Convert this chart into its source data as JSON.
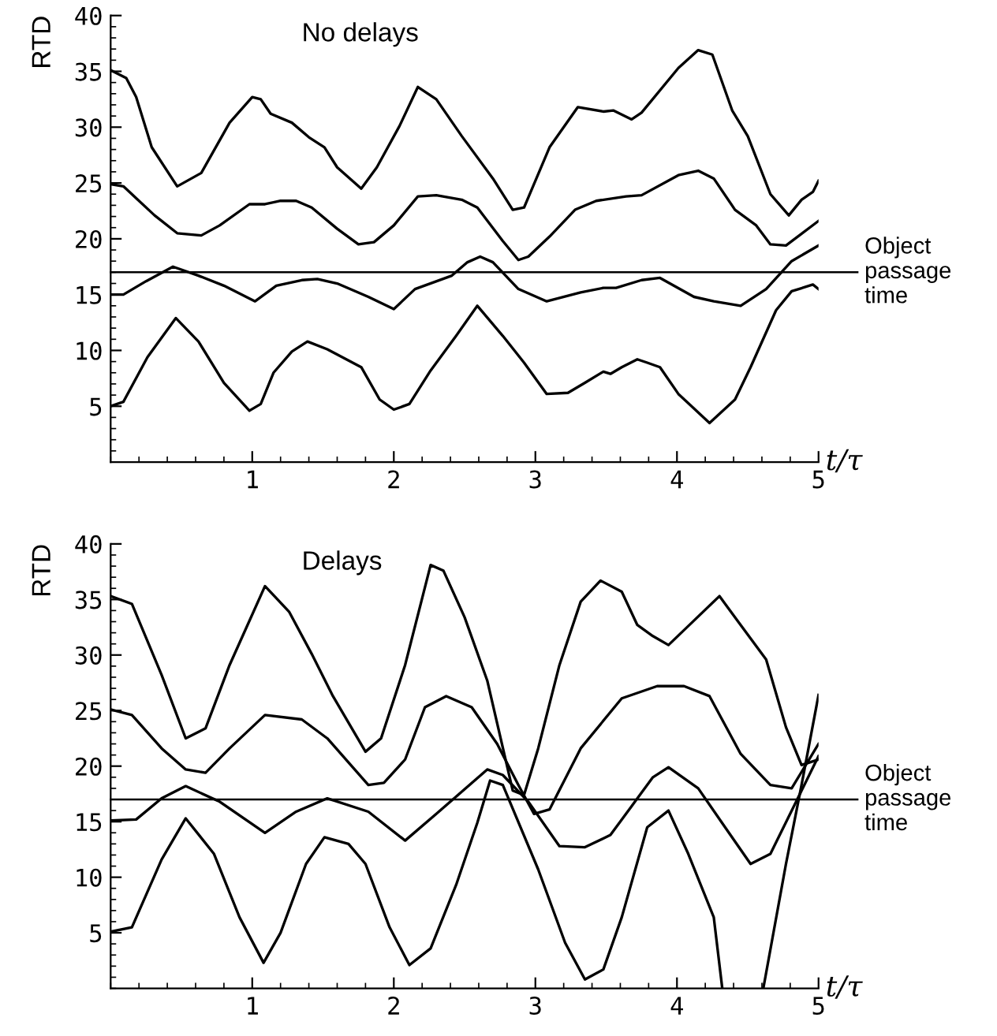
{
  "chart_data": [
    {
      "type": "line",
      "title": "No delays",
      "xlabel": "t/τ",
      "ylabel": "RTD",
      "xlim": [
        0,
        5
      ],
      "ylim": [
        0,
        40
      ],
      "xticks": [
        1,
        2,
        3,
        4,
        5
      ],
      "yticks": [
        5,
        10,
        15,
        20,
        25,
        30,
        35,
        40
      ],
      "grid": false,
      "legend": false,
      "marker": "none",
      "line_style": "solid",
      "ref_lines": [
        {
          "axis": "y",
          "value": 17,
          "label": "Object\npassage\ntime",
          "color": "#000000"
        }
      ],
      "series": [
        {
          "color": "#000000",
          "x": [
            0,
            0.11,
            0.18,
            0.29,
            0.47,
            0.64,
            0.84,
            1.0,
            1.06,
            1.13,
            1.28,
            1.4,
            1.51,
            1.6,
            1.77,
            1.88,
            2.04,
            2.17,
            2.3,
            2.48,
            2.7,
            2.84,
            2.92,
            3.1,
            3.3,
            3.48,
            3.55,
            3.68,
            3.75,
            4.01,
            4.15,
            4.25,
            4.39,
            4.5,
            4.66,
            4.79,
            4.88,
            4.96,
            5.0
          ],
          "values": [
            35.1,
            34.4,
            32.7,
            28.2,
            24.7,
            25.9,
            30.4,
            32.7,
            32.5,
            31.2,
            30.4,
            29.1,
            28.2,
            26.4,
            24.5,
            26.4,
            30.1,
            33.6,
            32.5,
            29.2,
            25.4,
            22.6,
            22.8,
            28.2,
            31.8,
            31.4,
            31.5,
            30.7,
            31.3,
            35.3,
            36.9,
            36.5,
            31.5,
            29.2,
            24.0,
            22.1,
            23.5,
            24.2,
            25.2
          ]
        },
        {
          "color": "#000000",
          "x": [
            0,
            0.09,
            0.31,
            0.47,
            0.64,
            0.77,
            0.98,
            1.09,
            1.2,
            1.31,
            1.42,
            1.6,
            1.75,
            1.86,
            2.0,
            2.17,
            2.3,
            2.48,
            2.59,
            2.77,
            2.88,
            2.95,
            3.1,
            3.28,
            3.43,
            3.64,
            3.75,
            4.01,
            4.15,
            4.26,
            4.41,
            4.56,
            4.66,
            4.77,
            5.0
          ],
          "values": [
            24.9,
            24.7,
            22.1,
            20.5,
            20.3,
            21.2,
            23.1,
            23.1,
            23.4,
            23.4,
            22.8,
            20.9,
            19.5,
            19.7,
            21.2,
            23.8,
            23.9,
            23.5,
            22.8,
            19.8,
            18.1,
            18.4,
            20.2,
            22.6,
            23.4,
            23.8,
            23.9,
            25.7,
            26.1,
            25.4,
            22.6,
            21.2,
            19.5,
            19.4,
            21.6
          ]
        },
        {
          "color": "#000000",
          "x": [
            0,
            0.09,
            0.25,
            0.44,
            0.62,
            0.8,
            1.02,
            1.17,
            1.35,
            1.46,
            1.6,
            1.82,
            2.0,
            2.15,
            2.41,
            2.52,
            2.61,
            2.7,
            2.88,
            3.08,
            3.32,
            3.48,
            3.57,
            3.75,
            3.88,
            4.12,
            4.26,
            4.45,
            4.63,
            4.81,
            5.0
          ],
          "values": [
            15.0,
            15.0,
            16.2,
            17.5,
            16.7,
            15.8,
            14.4,
            15.8,
            16.3,
            16.4,
            16.0,
            14.8,
            13.7,
            15.5,
            16.7,
            17.9,
            18.4,
            17.9,
            15.5,
            14.4,
            15.2,
            15.6,
            15.6,
            16.3,
            16.5,
            14.8,
            14.4,
            14.0,
            15.5,
            18.0,
            19.4
          ]
        },
        {
          "color": "#000000",
          "x": [
            0,
            0.09,
            0.26,
            0.46,
            0.62,
            0.8,
            0.98,
            1.06,
            1.15,
            1.28,
            1.39,
            1.53,
            1.77,
            1.9,
            2.0,
            2.11,
            2.26,
            2.44,
            2.59,
            2.77,
            2.92,
            3.08,
            3.23,
            3.35,
            3.48,
            3.53,
            3.61,
            3.72,
            3.79,
            3.88,
            4.01,
            4.23,
            4.41,
            4.52,
            4.7,
            4.81,
            4.96,
            5.0
          ],
          "values": [
            5.0,
            5.4,
            9.4,
            12.9,
            10.8,
            7.1,
            4.6,
            5.2,
            8.0,
            9.9,
            10.8,
            10.1,
            8.5,
            5.6,
            4.7,
            5.2,
            8.2,
            11.3,
            14.0,
            11.3,
            8.9,
            6.1,
            6.2,
            7.1,
            8.1,
            7.9,
            8.5,
            9.2,
            8.9,
            8.5,
            6.1,
            3.5,
            5.6,
            8.5,
            13.6,
            15.3,
            15.9,
            15.5
          ]
        }
      ]
    },
    {
      "type": "line",
      "title": "Delays",
      "xlabel": "t/τ",
      "ylabel": "RTD",
      "xlim": [
        0,
        5
      ],
      "ylim": [
        0,
        40
      ],
      "xticks": [
        1,
        2,
        3,
        4,
        5
      ],
      "yticks": [
        5,
        10,
        15,
        20,
        25,
        30,
        35,
        40
      ],
      "grid": false,
      "legend": false,
      "marker": "none",
      "line_style": "solid",
      "ref_lines": [
        {
          "axis": "y",
          "value": 17,
          "label": "Object\npassage\ntime",
          "color": "#000000"
        }
      ],
      "series": [
        {
          "color": "#000000",
          "x": [
            0,
            0.15,
            0.36,
            0.53,
            0.67,
            0.84,
            1.09,
            1.26,
            1.42,
            1.57,
            1.8,
            1.91,
            2.08,
            2.26,
            2.35,
            2.5,
            2.66,
            2.84,
            2.92,
            3.02,
            3.17,
            3.32,
            3.46,
            3.61,
            3.72,
            3.83,
            3.94,
            4.12,
            4.3,
            4.45,
            4.63,
            4.77,
            4.88,
            5.0
          ],
          "values": [
            35.3,
            34.6,
            28.2,
            22.5,
            23.4,
            29.1,
            36.2,
            33.9,
            30.1,
            26.3,
            21.3,
            22.5,
            29.1,
            38.1,
            37.6,
            33.4,
            27.7,
            17.8,
            17.4,
            21.6,
            29.1,
            34.8,
            36.7,
            35.7,
            32.7,
            31.7,
            30.9,
            33.1,
            35.3,
            32.7,
            29.6,
            23.5,
            20.1,
            20.6
          ]
        },
        {
          "color": "#000000",
          "x": [
            0,
            0.15,
            0.36,
            0.53,
            0.67,
            0.84,
            1.09,
            1.35,
            1.53,
            1.82,
            1.93,
            2.08,
            2.22,
            2.37,
            2.55,
            2.73,
            2.88,
            2.99,
            3.1,
            3.32,
            3.61,
            3.86,
            4.05,
            4.23,
            4.45,
            4.66,
            4.81,
            5.0
          ],
          "values": [
            25.1,
            24.6,
            21.6,
            19.7,
            19.4,
            21.6,
            24.6,
            24.2,
            22.5,
            18.3,
            18.5,
            20.6,
            25.3,
            26.3,
            25.3,
            22.0,
            18.3,
            15.7,
            16.1,
            21.6,
            26.1,
            27.2,
            27.2,
            26.3,
            21.1,
            18.3,
            18.0,
            22.0
          ]
        },
        {
          "color": "#000000",
          "x": [
            0,
            0.18,
            0.36,
            0.53,
            0.77,
            1.09,
            1.31,
            1.53,
            1.82,
            2.08,
            2.3,
            2.66,
            2.77,
            2.95,
            3.17,
            3.35,
            3.53,
            3.68,
            3.83,
            3.94,
            4.15,
            4.34,
            4.52,
            4.66,
            5.0
          ],
          "values": [
            15.1,
            15.2,
            17.1,
            18.2,
            16.8,
            14.0,
            15.9,
            17.1,
            15.9,
            13.3,
            15.7,
            19.7,
            19.2,
            16.8,
            12.8,
            12.7,
            13.8,
            16.4,
            19.0,
            19.9,
            18.0,
            14.5,
            11.2,
            12.1,
            20.9
          ]
        },
        {
          "color": "#000000",
          "x": [
            0,
            0.15,
            0.36,
            0.53,
            0.73,
            0.91,
            1.08,
            1.2,
            1.38,
            1.51,
            1.68,
            1.8,
            1.97,
            2.11,
            2.26,
            2.44,
            2.59,
            2.68,
            2.77,
            3.02,
            3.21,
            3.35,
            3.48,
            3.61,
            3.79,
            3.94,
            4.08,
            4.26,
            4.32,
            4.45,
            4.61,
            4.77,
            4.88,
            5.0
          ],
          "values": [
            5.1,
            5.5,
            11.6,
            15.3,
            12.1,
            6.4,
            2.3,
            5.0,
            11.2,
            13.6,
            13.0,
            11.2,
            5.5,
            2.1,
            3.6,
            9.3,
            14.9,
            18.7,
            18.3,
            10.7,
            4.1,
            0.8,
            1.7,
            6.4,
            14.5,
            16.0,
            12.1,
            6.4,
            0,
            null,
            0,
            11.2,
            18.3,
            26.4
          ]
        }
      ]
    }
  ]
}
